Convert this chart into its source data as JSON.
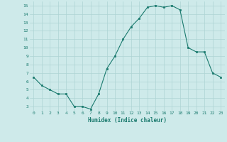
{
  "x": [
    0,
    1,
    2,
    3,
    4,
    5,
    6,
    7,
    8,
    9,
    10,
    11,
    12,
    13,
    14,
    15,
    16,
    17,
    18,
    19,
    20,
    21,
    22,
    23
  ],
  "y": [
    6.5,
    5.5,
    5.0,
    4.5,
    4.5,
    3.0,
    3.0,
    2.7,
    4.5,
    7.5,
    9.0,
    11.0,
    12.5,
    13.5,
    14.8,
    15.0,
    14.8,
    15.0,
    14.5,
    10.0,
    9.5,
    9.5,
    7.0,
    6.5
  ],
  "xlabel": "Humidex (Indice chaleur)",
  "ylim": [
    2.5,
    15.5
  ],
  "yticks": [
    3,
    4,
    5,
    6,
    7,
    8,
    9,
    10,
    11,
    12,
    13,
    14,
    15
  ],
  "xticks": [
    0,
    1,
    2,
    3,
    4,
    5,
    6,
    7,
    8,
    9,
    10,
    11,
    12,
    13,
    14,
    15,
    16,
    17,
    18,
    19,
    20,
    21,
    22,
    23
  ],
  "line_color": "#1a7a6e",
  "marker_color": "#1a7a6e",
  "bg_color": "#ceeaea",
  "grid_color": "#add4d4",
  "tick_label_color": "#1a7a6e",
  "xlabel_color": "#1a7a6e"
}
